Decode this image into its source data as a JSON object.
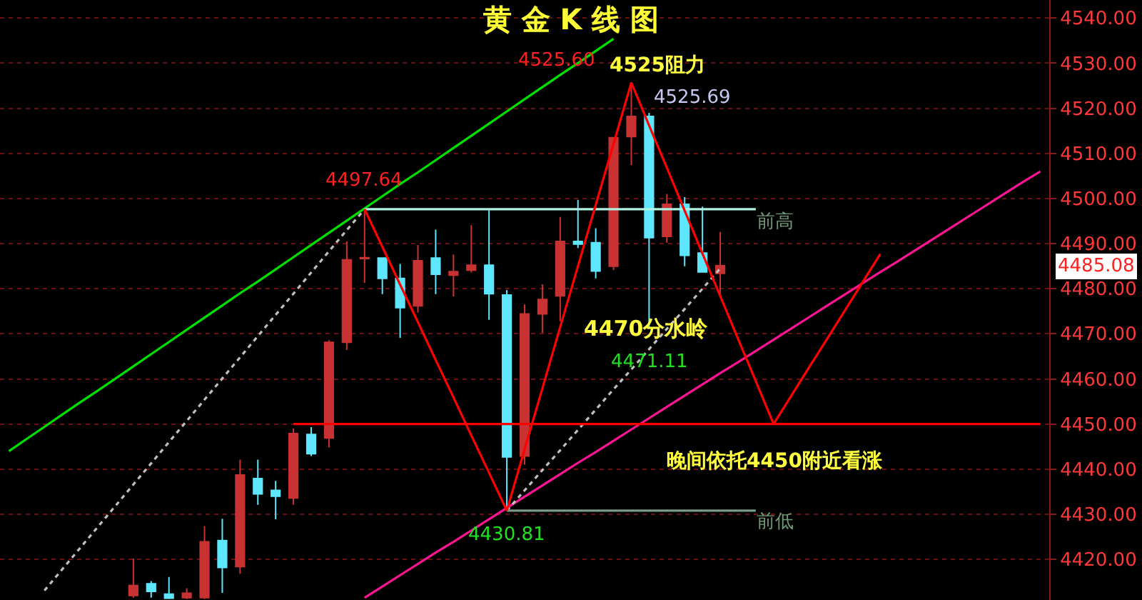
{
  "chart_data": {
    "type": "candlestick",
    "title": "黄 金 K 线 图",
    "categories": [
      null,
      null,
      null,
      null,
      null,
      null,
      null,
      null,
      null,
      null,
      null,
      null,
      null,
      null,
      null,
      null,
      null,
      null,
      null,
      null,
      null,
      null,
      null,
      null,
      null,
      null,
      null,
      null,
      null,
      null,
      null,
      null,
      null,
      null,
      null,
      null,
      null,
      null,
      null,
      null,
      null,
      null,
      null,
      null,
      null,
      null,
      null,
      null,
      null,
      null,
      null,
      null,
      null,
      null,
      null,
      null,
      null,
      null,
      null
    ],
    "ohlc": [
      null,
      null,
      null,
      null,
      null,
      null,
      null,
      [
        4412,
        4420.2,
        4411.5,
        4414.2
      ],
      [
        4414.6,
        4415.2,
        4411.5,
        4412.9
      ],
      [
        4412.3,
        4416.1,
        4411.2,
        4411.4
      ],
      [
        4411.5,
        4413.6,
        4411.2,
        4412.5
      ],
      [
        4411.5,
        4427.4,
        4411.2,
        4423.9
      ],
      [
        4424.2,
        4429,
        4412.6,
        4418.2
      ],
      [
        4418.4,
        4442.1,
        4416.8,
        4438.7
      ],
      [
        4437.9,
        4442.1,
        4432.1,
        4434.5
      ],
      [
        4435.3,
        4437.4,
        4428.9,
        4434
      ],
      [
        4433.6,
        4449,
        4432.1,
        4447.9
      ],
      [
        4447.7,
        4449.3,
        4442.9,
        4443.4
      ],
      [
        4446.9,
        4468.6,
        4444.8,
        4468.1
      ],
      [
        4468.1,
        4490.5,
        4466.4,
        4486.4
      ],
      [
        4486.7,
        4497.64,
        4481.3,
        4486.9
      ],
      [
        4486.8,
        4486.8,
        4478.8,
        4482.3
      ],
      [
        4482.3,
        4485.5,
        4469.1,
        4475.8
      ],
      [
        4476.2,
        4489.7,
        4474.7,
        4486.2
      ],
      [
        4486.8,
        4493.1,
        4478.8,
        4483.2
      ],
      [
        4483,
        4487.6,
        4478.3,
        4483.8
      ],
      [
        4484.1,
        4494.1,
        4483.6,
        4485.2
      ],
      [
        4485.2,
        4497.4,
        4473.1,
        4478.9
      ],
      [
        4478.6,
        4479.7,
        4430.81,
        4442.7
      ],
      [
        4442.9,
        4476.5,
        4441,
        4474.4
      ],
      [
        4474.4,
        4481,
        4470.2,
        4477.6
      ],
      [
        4478.4,
        4495.9,
        4472.8,
        4490.5
      ],
      [
        4490.5,
        4499.7,
        4489,
        4489.9
      ],
      [
        4490.2,
        4493.4,
        4482.3,
        4483.9
      ],
      [
        4485,
        4513.5,
        4484.1,
        4513.5
      ],
      [
        4513.7,
        4525.69,
        4507.4,
        4518.2
      ],
      [
        4518.2,
        4519,
        4471.11,
        4491.3
      ],
      [
        4491.6,
        4501,
        4490.2,
        4498.7
      ],
      [
        4498.7,
        4500.3,
        4485,
        4487.4
      ],
      [
        4487.9,
        4498.2,
        4483.7,
        4483.7
      ],
      [
        4483.4,
        4492.6,
        4478.1,
        4485.08
      ],
      null,
      null,
      null,
      null,
      null,
      null,
      null,
      null,
      null,
      null,
      null,
      null,
      null,
      null,
      null,
      null,
      null,
      null
    ],
    "colors": [
      null,
      null,
      null,
      null,
      null,
      null,
      null,
      "#c83232",
      "#5fe6ff",
      "#5fe6ff",
      "#c83232",
      "#c83232",
      "#5fe6ff",
      "#c83232",
      "#5fe6ff",
      "#5fe6ff",
      "#c83232",
      "#5fe6ff",
      "#c83232",
      "#c83232",
      "#c83232",
      "#5fe6ff",
      "#5fe6ff",
      "#c83232",
      "#5fe6ff",
      "#c83232",
      "#c83232",
      "#5fe6ff",
      "#5fe6ff",
      "#c83232",
      "#c83232",
      "#c83232",
      "#5fe6ff",
      "#5fe6ff",
      "#c83232",
      "#c83232",
      "#5fe6ff",
      "#c83232",
      "#5fe6ff",
      "#5fe6ff",
      "#c83232",
      null,
      null,
      null,
      null,
      null,
      null,
      null,
      null,
      null,
      null,
      null,
      null,
      null,
      null,
      null,
      null,
      null,
      null
    ],
    "series": [
      {
        "type": "line",
        "color": "#00e000",
        "values": [
          4444.0,
          4446.7,
          4449.4,
          4452.1,
          4454.8,
          4457.4,
          4460.1,
          4462.8,
          4465.5,
          4468.2,
          4470.9,
          4473.6,
          4476.3,
          4479.0,
          4481.6,
          4484.3,
          4487.0,
          4489.7,
          4492.4,
          4495.1,
          4497.8,
          4500.5,
          4503.2,
          4505.8,
          4508.5,
          4511.2,
          4513.9,
          4516.6,
          4519.3,
          4522.0,
          4524.7,
          4527.4,
          4530.0,
          4532.7,
          4535.4,
          null,
          null,
          null,
          null,
          null,
          null,
          null,
          null,
          null,
          null,
          null,
          null,
          null,
          null,
          null,
          null,
          null,
          null,
          null,
          null,
          null,
          null,
          null,
          null
        ]
      },
      {
        "type": "line",
        "color": "#ff1493",
        "values": [
          null,
          null,
          null,
          null,
          null,
          null,
          null,
          null,
          null,
          null,
          null,
          null,
          null,
          null,
          null,
          null,
          null,
          null,
          null,
          null,
          4411.5,
          4414.0,
          4416.5,
          4419.0,
          4421.5,
          4423.9,
          4426.4,
          4428.9,
          4431.4,
          4433.9,
          4436.4,
          4438.9,
          4441.4,
          4443.8,
          4446.3,
          4448.8,
          4451.3,
          4453.8,
          4456.3,
          4458.8,
          4461.3,
          4463.7,
          4466.2,
          4468.7,
          4471.2,
          4473.7,
          4476.2,
          4478.7,
          4481.2,
          4483.7,
          4486.1,
          4488.6,
          4491.1,
          4493.6,
          4496.1,
          4498.6,
          4501.1,
          4503.6,
          4506.0
        ]
      },
      {
        "type": "line",
        "color": "#c0c0c0",
        "line_style": "dotted",
        "values": [
          null,
          null,
          4413.1,
          4417.8,
          4422.5,
          4427.2,
          4431.9,
          4436.6,
          4441.3,
          4446.0,
          4450.7,
          4455.4,
          4460.1,
          4464.8,
          4469.5,
          4474.2,
          4478.9,
          4483.6,
          4488.3,
          4493.0,
          4497.6,
          null,
          null,
          null,
          null,
          null,
          null,
          null,
          null,
          null,
          null,
          null,
          null,
          null,
          null,
          null,
          null,
          null,
          null,
          null,
          null,
          null,
          null,
          null,
          null,
          null,
          null,
          null,
          null,
          null,
          null,
          null,
          null,
          null,
          null,
          null,
          null,
          null,
          null
        ]
      },
      {
        "type": "line",
        "color": "#c0c0c0",
        "line_style": "dotted",
        "values": [
          null,
          null,
          null,
          null,
          null,
          null,
          null,
          null,
          null,
          null,
          null,
          null,
          null,
          null,
          null,
          null,
          null,
          null,
          null,
          null,
          null,
          null,
          null,
          null,
          null,
          null,
          null,
          null,
          4430.8,
          4435.3,
          4439.8,
          4444.2,
          4448.7,
          4453.2,
          4457.7,
          4462.1,
          4466.6,
          4471.1,
          4475.5,
          4480.0,
          4484.5,
          null,
          null,
          null,
          null,
          null,
          null,
          null,
          null,
          null,
          null,
          null,
          null,
          null,
          null,
          null,
          null,
          null,
          null
        ]
      },
      {
        "type": "line",
        "color": "#b0f0e0",
        "values": [
          null,
          null,
          null,
          null,
          null,
          null,
          null,
          null,
          null,
          null,
          null,
          null,
          null,
          null,
          null,
          null,
          null,
          null,
          null,
          null,
          4497.64,
          4497.64,
          4497.64,
          4497.64,
          4497.64,
          4497.64,
          4497.64,
          4497.64,
          4497.64,
          4497.64,
          4497.64,
          4497.64,
          4497.64,
          4497.64,
          4497.64,
          4497.64,
          4497.64,
          4497.64,
          4497.64,
          4497.64,
          4497.64,
          4497.64,
          4497.64,
          null,
          null,
          null,
          null,
          null,
          null,
          null,
          null,
          null,
          null,
          null,
          null,
          null,
          null,
          null,
          null
        ]
      },
      {
        "type": "line",
        "color": "#7a9a8a",
        "values": [
          null,
          null,
          null,
          null,
          null,
          null,
          null,
          null,
          null,
          null,
          null,
          null,
          null,
          null,
          null,
          null,
          null,
          null,
          null,
          null,
          null,
          null,
          null,
          null,
          null,
          null,
          null,
          null,
          4430.81,
          4430.81,
          4430.81,
          4430.81,
          4430.81,
          4430.81,
          4430.81,
          4430.81,
          4430.81,
          4430.81,
          4430.81,
          4430.81,
          4430.81,
          4430.81,
          4430.81,
          null,
          null,
          null,
          null,
          null,
          null,
          null,
          null,
          null,
          null,
          null,
          null,
          null,
          null,
          null,
          null
        ]
      },
      {
        "type": "line",
        "color": "#ff0000",
        "values": [
          null,
          null,
          null,
          null,
          null,
          null,
          null,
          null,
          null,
          null,
          null,
          null,
          null,
          null,
          null,
          null,
          4450,
          4450,
          4450,
          4450,
          4450,
          4450,
          4450,
          4450,
          4450,
          4450,
          4450,
          4450,
          4450,
          4450,
          4450,
          4450,
          4450,
          4450,
          4450,
          4450,
          4450,
          4450,
          4450,
          4450,
          4450,
          4450,
          4450,
          4450,
          4450,
          4450,
          4450,
          4450,
          4450,
          4450,
          4450,
          4450,
          4450,
          4450,
          4450,
          4450,
          4450,
          4450,
          4450
        ]
      },
      {
        "type": "line",
        "color": "#ff0000",
        "values": [
          null,
          null,
          null,
          null,
          null,
          null,
          null,
          null,
          null,
          null,
          null,
          null,
          null,
          null,
          null,
          null,
          null,
          null,
          null,
          null,
          4497.64,
          4489.3,
          4480.9,
          4472.6,
          4464.2,
          4455.9,
          4447.5,
          4439.2,
          4430.81,
          4444.4,
          4457.9,
          4471.5,
          4485.0,
          4498.6,
          4512.1,
          4525.69,
          4516.2,
          4506.8,
          4497.3,
          4487.8,
          4478.4,
          4468.9,
          4459.5,
          4450,
          4456.3,
          4462.6,
          4468.8,
          4475.1,
          4481.4,
          4487.7,
          null,
          null,
          null,
          null,
          null,
          null,
          null,
          null,
          null
        ]
      }
    ],
    "ylim": [
      4411,
      4544
    ],
    "yticks": [
      {
        "value": 4420,
        "label": "4420.00"
      },
      {
        "value": 4430,
        "label": "4430.00"
      },
      {
        "value": 4440,
        "label": "4440.00"
      },
      {
        "value": 4450,
        "label": "4450.00"
      },
      {
        "value": 4460,
        "label": "4460.00"
      },
      {
        "value": 4470,
        "label": "4470.00"
      },
      {
        "value": 4480,
        "label": "4480.00"
      },
      {
        "value": 4490,
        "label": "4490.00"
      },
      {
        "value": 4500,
        "label": "4500.00"
      },
      {
        "value": 4510,
        "label": "4510.00"
      },
      {
        "value": 4520,
        "label": "4520.00"
      },
      {
        "value": 4530,
        "label": "4530.00"
      },
      {
        "value": 4540,
        "label": "4540.00"
      }
    ],
    "grid": "y",
    "tick_labels": "y",
    "annotations": [
      {
        "text": "4525.60",
        "y": 4525.69
      },
      "4525阻力",
      "4525.69",
      {
        "text": "4497.64",
        "y": 4497.64
      },
      {
        "text": "4430.81",
        "y": 4430.81
      },
      {
        "text": "4471.11",
        "y": 4471.11
      },
      {
        "text": "4470分水岭",
        "y": 4470
      },
      "晚间依托4450附近看涨",
      "前高",
      "前低",
      "4485.08"
    ]
  }
}
